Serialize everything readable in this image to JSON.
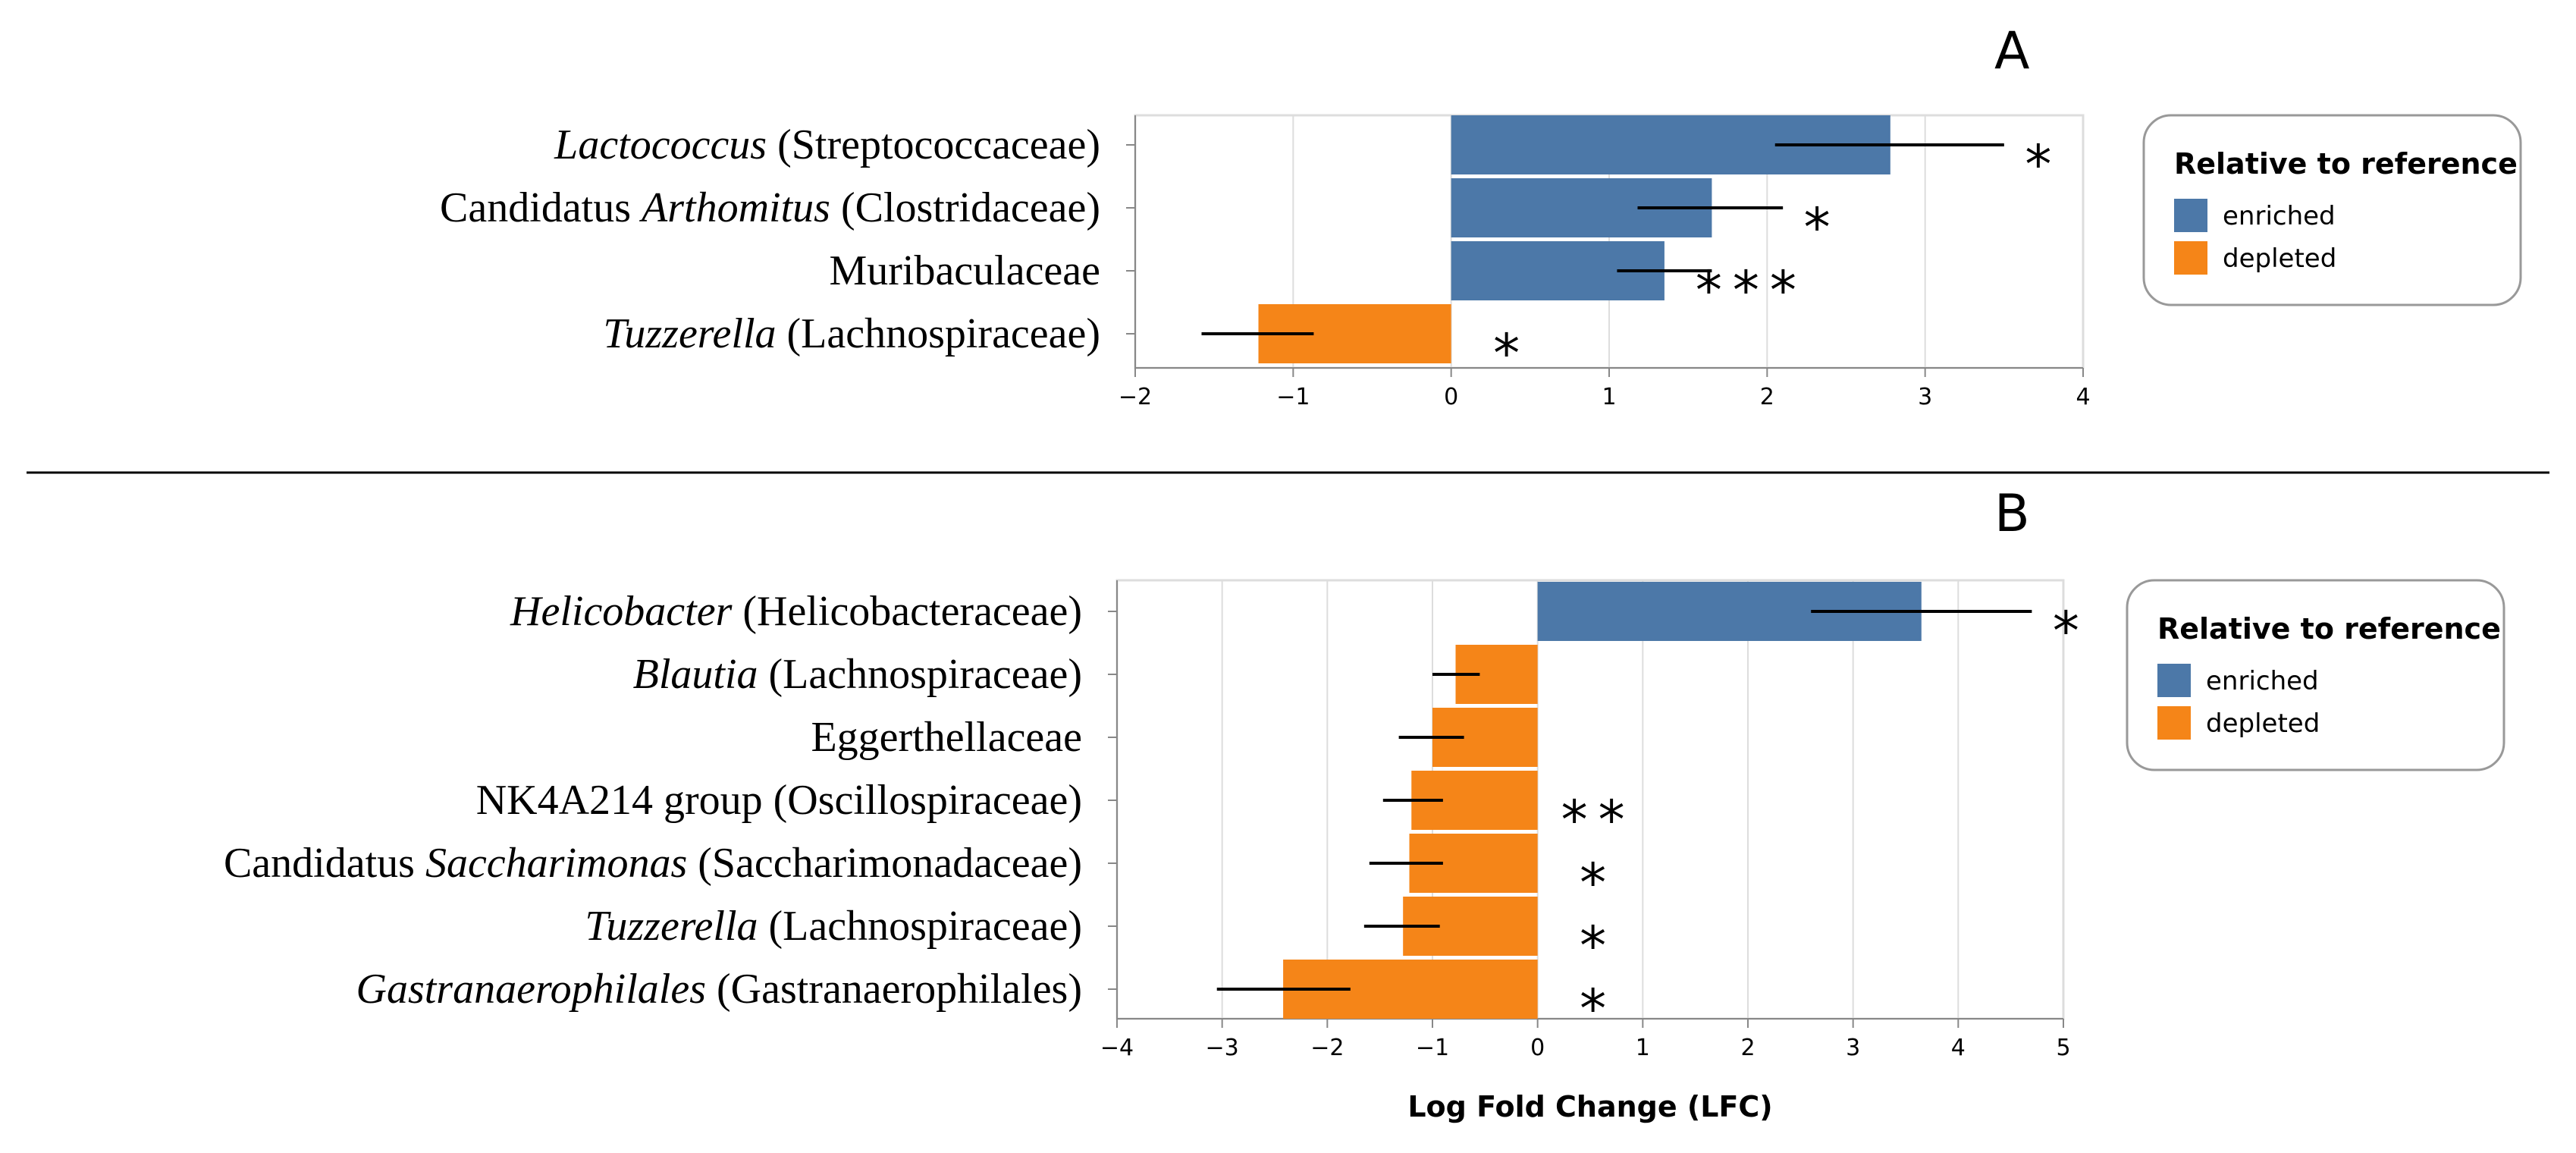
{
  "chart_data": [
    {
      "panel": "A",
      "type": "bar",
      "orientation": "horizontal",
      "categories": [
        {
          "italic": "Lactococcus",
          "plain": "(Streptococcaceae)"
        },
        {
          "prefix": "Candidatus",
          "italic": "Arthomitus",
          "plain": "(Clostridaceae)"
        },
        {
          "plain": "Muribaculaceae"
        },
        {
          "italic": "Tuzzerella",
          "plain": "(Lachnospiraceae)"
        }
      ],
      "values": [
        2.78,
        1.65,
        1.35,
        -1.22
      ],
      "error_low": [
        2.05,
        1.18,
        1.05,
        -1.58
      ],
      "error_high": [
        3.5,
        2.1,
        1.65,
        -0.87
      ],
      "significance": [
        "*",
        "*",
        "***",
        "*"
      ],
      "direction": [
        "enriched",
        "enriched",
        "enriched",
        "depleted"
      ],
      "xlim": [
        -2,
        4
      ],
      "xticks": [
        "−2",
        "−1",
        "0",
        "1",
        "2",
        "3",
        "4"
      ],
      "xlabel": "",
      "legend": {
        "title": "Relative to reference",
        "items": [
          {
            "label": "enriched",
            "color": "#4c78a8"
          },
          {
            "label": "depleted",
            "color": "#f58518"
          }
        ]
      }
    },
    {
      "panel": "B",
      "type": "bar",
      "orientation": "horizontal",
      "categories": [
        {
          "italic": "Helicobacter",
          "plain": "(Helicobacteraceae)"
        },
        {
          "italic": "Blautia",
          "plain": "(Lachnospiraceae)"
        },
        {
          "plain": "Eggerthellaceae"
        },
        {
          "plain": "NK4A214 group  (Oscillospiraceae)"
        },
        {
          "prefix": "Candidatus",
          "italic": "Saccharimonas",
          "plain": "(Saccharimonadaceae)"
        },
        {
          "italic": "Tuzzerella",
          "plain": "(Lachnospiraceae)"
        },
        {
          "italic": "Gastranaerophilales",
          "plain": "(Gastranaerophilales)"
        }
      ],
      "values": [
        3.65,
        -0.78,
        -1.0,
        -1.2,
        -1.22,
        -1.28,
        -2.42
      ],
      "error_low": [
        2.6,
        -1.0,
        -1.32,
        -1.47,
        -1.6,
        -1.65,
        -3.05
      ],
      "error_high": [
        4.7,
        -0.55,
        -0.7,
        -0.9,
        -0.9,
        -0.93,
        -1.78
      ],
      "significance": [
        "*",
        "",
        "",
        "**",
        "*",
        "*",
        "*"
      ],
      "direction": [
        "enriched",
        "depleted",
        "depleted",
        "depleted",
        "depleted",
        "depleted",
        "depleted"
      ],
      "xlim": [
        -4,
        5
      ],
      "xticks": [
        "−4",
        "−3",
        "−2",
        "−1",
        "0",
        "1",
        "2",
        "3",
        "4",
        "5"
      ],
      "xlabel": "Log Fold Change (LFC)",
      "legend": {
        "title": "Relative to reference",
        "items": [
          {
            "label": "enriched",
            "color": "#4c78a8"
          },
          {
            "label": "depleted",
            "color": "#f58518"
          }
        ]
      }
    }
  ],
  "colors": {
    "enriched": "#4c78a8",
    "depleted": "#f58518",
    "grid": "#dddddd",
    "axis": "#888888"
  }
}
